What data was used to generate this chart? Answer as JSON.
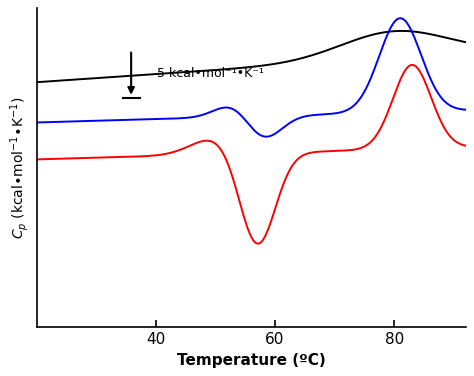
{
  "title": "",
  "xlabel": "Temperature (ºC)",
  "ylabel": "C$_p$ (kcal•mol$^{-1}$•K$^{-1}$)",
  "xlim": [
    20,
    92
  ],
  "ylim": [
    -5.5,
    4.0
  ],
  "x_ticks": [
    40,
    60,
    80
  ],
  "scale_bar_text": "5 kcal•mol⁻¹•K⁻¹",
  "line_colors": [
    "black",
    "blue",
    "red"
  ],
  "background_color": "#ffffff"
}
